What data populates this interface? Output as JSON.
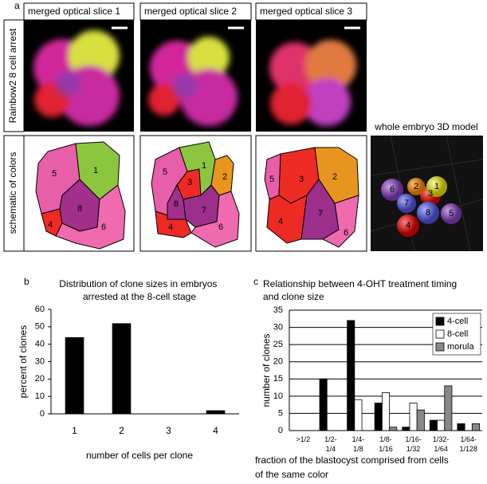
{
  "panel_a": {
    "label": "a",
    "slice_titles": [
      "merged optical slice 1",
      "merged optical slice 2",
      "merged optical slice 3"
    ],
    "row_labels": [
      "Rainbow2 8 cell arrest",
      "schematic of colors"
    ],
    "model_title": "whole embryo 3D model",
    "schematics": [
      [
        "5",
        "1",
        "8",
        "4",
        "6"
      ],
      [
        "5",
        "3",
        "1",
        "2",
        "8",
        "7",
        "4",
        "6"
      ],
      [
        "5",
        "3",
        "2",
        "4",
        "7",
        "6"
      ]
    ],
    "model_labels": [
      "6",
      "2",
      "3",
      "1",
      "7",
      "8",
      "5",
      "4"
    ]
  },
  "chart_data": [
    {
      "type": "bar",
      "panel_label": "b",
      "title": "Distribution of clone sizes in embryos arrested at the 8-cell stage",
      "x_label": "number of cells per clone",
      "y_label": "percent of clones",
      "categories": [
        "1",
        "2",
        "3",
        "4"
      ],
      "values": [
        44,
        52,
        0,
        2
      ],
      "color": "#000000",
      "ylim": [
        0,
        60
      ],
      "yticks": [
        0,
        10,
        20,
        30,
        40,
        50,
        60
      ],
      "grid": false
    },
    {
      "type": "grouped_bar",
      "panel_label": "c",
      "title": "Relationship between 4-OHT treatment timing and clone size",
      "x_label": "fraction of the blastocyst comprised from cells of the same color",
      "y_label": "number of clones",
      "categories": [
        ">1/2",
        "1/2-1/4",
        "1/4-1/8",
        "1/8-1/16",
        "1/16-1/32",
        "1/32-1/64",
        "1/64-1/128"
      ],
      "series": [
        {
          "name": "4-cell",
          "color": "#000000",
          "values": [
            0,
            15,
            32,
            8,
            1,
            3,
            2
          ]
        },
        {
          "name": "8-cell",
          "color": "#ffffff",
          "values": [
            0,
            0,
            9,
            11,
            8,
            3,
            0
          ]
        },
        {
          "name": "morula",
          "color": "#888888",
          "values": [
            0,
            0,
            0,
            1,
            6,
            13,
            2
          ]
        }
      ],
      "ylim": [
        0,
        35
      ],
      "yticks": [
        0,
        5,
        10,
        15,
        20,
        25,
        30,
        35
      ],
      "grid": true,
      "legend": "top-right"
    }
  ]
}
